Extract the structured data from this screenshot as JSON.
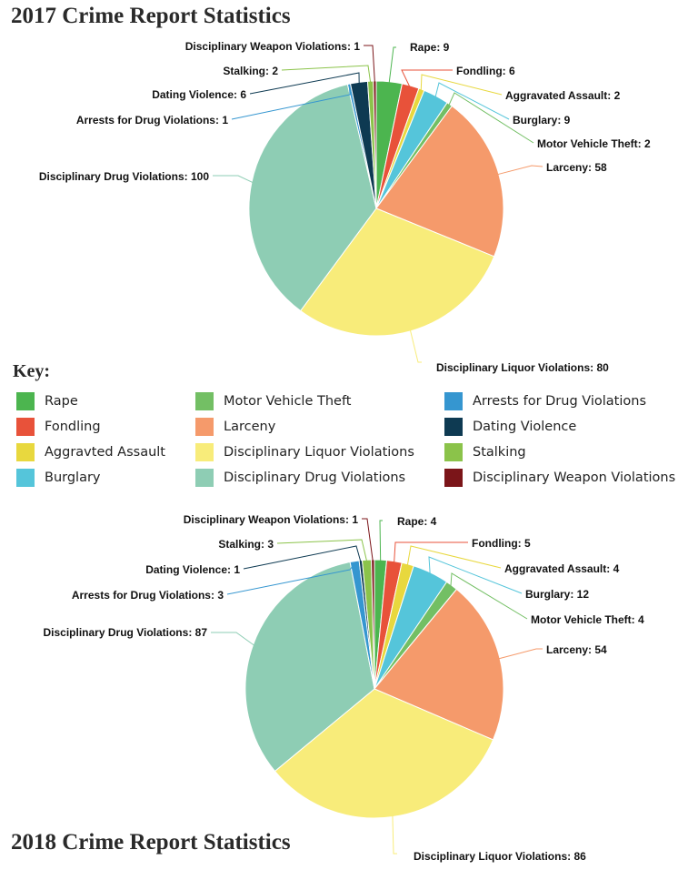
{
  "key": {
    "title": "Key:",
    "items": [
      {
        "label": "Rape",
        "color": "#4cb54f"
      },
      {
        "label": "Fondling",
        "color": "#e8523a"
      },
      {
        "label": "Aggravted Assault",
        "color": "#e8d83e"
      },
      {
        "label": "Burglary",
        "color": "#55c5da"
      },
      {
        "label": "Motor Vehicle Theft",
        "color": "#73bf64"
      },
      {
        "label": "Larceny",
        "color": "#f59a6b"
      },
      {
        "label": "Disciplinary Liquor Violations",
        "color": "#f8ec7a"
      },
      {
        "label": "Disciplinary Drug Violations",
        "color": "#8ecdb4"
      },
      {
        "label": "Arrests for Drug Violations",
        "color": "#3596d0"
      },
      {
        "label": "Dating Violence",
        "color": "#0e3a52"
      },
      {
        "label": "Stalking",
        "color": "#8bc34a"
      },
      {
        "label": "Disciplinary Weapon Violations",
        "color": "#7b1519"
      }
    ]
  },
  "chart_data": [
    {
      "type": "pie",
      "title": "2017 Crime Report Statistics",
      "slices": [
        {
          "label": "Rape",
          "value": 9,
          "display": "Rape: 9",
          "color": "#4cb54f"
        },
        {
          "label": "Fondling",
          "value": 6,
          "display": "Fondling: 6",
          "color": "#e8523a"
        },
        {
          "label": "Aggravated Assault",
          "value": 2,
          "display": "Aggravated Assault: 2",
          "color": "#e8d83e"
        },
        {
          "label": "Burglary",
          "value": 9,
          "display": "Burglary: 9",
          "color": "#55c5da"
        },
        {
          "label": "Motor Vehicle Theft",
          "value": 2,
          "display": "Motor Vehicle Theft: 2",
          "color": "#73bf64"
        },
        {
          "label": "Larceny",
          "value": 58,
          "display": "Larceny: 58",
          "color": "#f59a6b"
        },
        {
          "label": "Disciplinary Liquor Violations",
          "value": 80,
          "display": "Disciplinary Liquor Violations: 80",
          "color": "#f8ec7a"
        },
        {
          "label": "Disciplinary Drug Violations",
          "value": 100,
          "display": "Disciplinary Drug Violations: 100",
          "color": "#8ecdb4"
        },
        {
          "label": "Arrests for Drug Violations",
          "value": 1,
          "display": "Arrests for Drug Violations: 1",
          "color": "#3596d0"
        },
        {
          "label": "Dating Violence",
          "value": 6,
          "display": "Dating Violence: 6",
          "color": "#0e3a52"
        },
        {
          "label": "Stalking",
          "value": 2,
          "display": "Stalking: 2",
          "color": "#8bc34a"
        },
        {
          "label": "Disciplinary Weapon Violations",
          "value": 1,
          "display": "Disciplinary Weapon Violations: 1",
          "color": "#7b1519"
        }
      ]
    },
    {
      "type": "pie",
      "title": "2018 Crime Report Statistics",
      "slices": [
        {
          "label": "Rape",
          "value": 4,
          "display": "Rape: 4",
          "color": "#4cb54f"
        },
        {
          "label": "Fondling",
          "value": 5,
          "display": "Fondling: 5",
          "color": "#e8523a"
        },
        {
          "label": "Aggravated Assault",
          "value": 4,
          "display": "Aggravated Assault: 4",
          "color": "#e8d83e"
        },
        {
          "label": "Burglary",
          "value": 12,
          "display": "Burglary: 12",
          "color": "#55c5da"
        },
        {
          "label": "Motor Vehicle Theft",
          "value": 4,
          "display": "Motor Vehicle Theft: 4",
          "color": "#73bf64"
        },
        {
          "label": "Larceny",
          "value": 54,
          "display": "Larceny: 54",
          "color": "#f59a6b"
        },
        {
          "label": "Disciplinary Liquor Violations",
          "value": 86,
          "display": "Disciplinary Liquor Violations: 86",
          "color": "#f8ec7a"
        },
        {
          "label": "Disciplinary Drug Violations",
          "value": 87,
          "display": "Disciplinary Drug Violations: 87",
          "color": "#8ecdb4"
        },
        {
          "label": "Arrests for Drug Violations",
          "value": 3,
          "display": "Arrests for Drug Violations: 3",
          "color": "#3596d0"
        },
        {
          "label": "Dating Violence",
          "value": 1,
          "display": "Dating Violence: 1",
          "color": "#0e3a52"
        },
        {
          "label": "Stalking",
          "value": 3,
          "display": "Stalking: 3",
          "color": "#8bc34a"
        },
        {
          "label": "Disciplinary Weapon Violations",
          "value": 1,
          "display": "Disciplinary Weapon Violations: 1",
          "color": "#7b1519"
        }
      ]
    }
  ]
}
